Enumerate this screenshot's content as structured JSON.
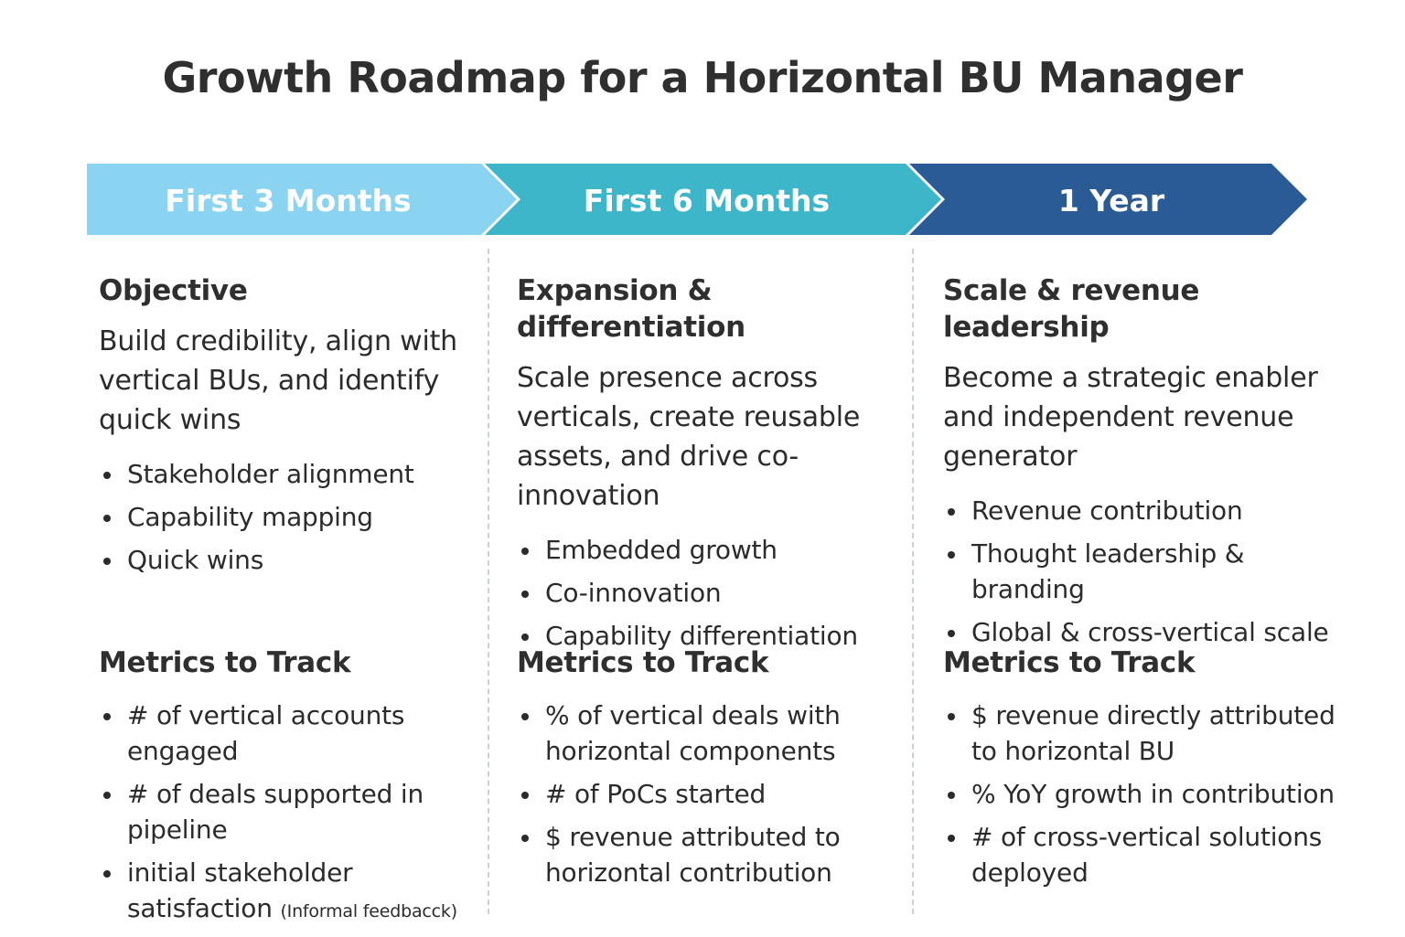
{
  "title": "Growth Roadmap for a Horizontal BU Manager",
  "colors": {
    "phase1": "#8ad3f1",
    "phase2": "#3cb6c8",
    "phase3": "#2a5b94",
    "divider": "#c9d2da"
  },
  "phases": [
    {
      "label": "First 3 Months",
      "heading": "Objective",
      "description": "Build credibility, align with vertical BUs, and identify quick wins",
      "focus": [
        "Stakeholder alignment",
        "Capability mapping",
        "Quick wins"
      ],
      "metrics_heading": "Metrics to Track",
      "metrics": [
        "# of vertical accounts engaged",
        "# of deals supported in pipeline",
        "initial stakeholder satisfaction"
      ],
      "metrics_note": "(Informal feedbacck)"
    },
    {
      "label": "First 6 Months",
      "heading": "Expansion & differentiation",
      "description": "Scale presence across verticals, create reusable assets, and drive co-innovation",
      "focus": [
        "Embedded growth",
        "Co-innovation",
        "Capability differentiation"
      ],
      "metrics_heading": "Metrics to Track",
      "metrics": [
        "% of vertical deals with horizontal components",
        "# of PoCs started",
        "$ revenue attributed to horizontal contribution"
      ]
    },
    {
      "label": "1 Year",
      "heading": "Scale & revenue leadership",
      "description": "Become a strategic enabler and independent revenue generator",
      "focus": [
        "Revenue contribution",
        "Thought leadership & branding",
        "Global & cross-vertical scale"
      ],
      "metrics_heading": "Metrics to Track",
      "metrics": [
        "$ revenue directly attributed to horizontal BU",
        "% YoY growth in contribution",
        "# of cross-vertical solutions deployed"
      ]
    }
  ]
}
